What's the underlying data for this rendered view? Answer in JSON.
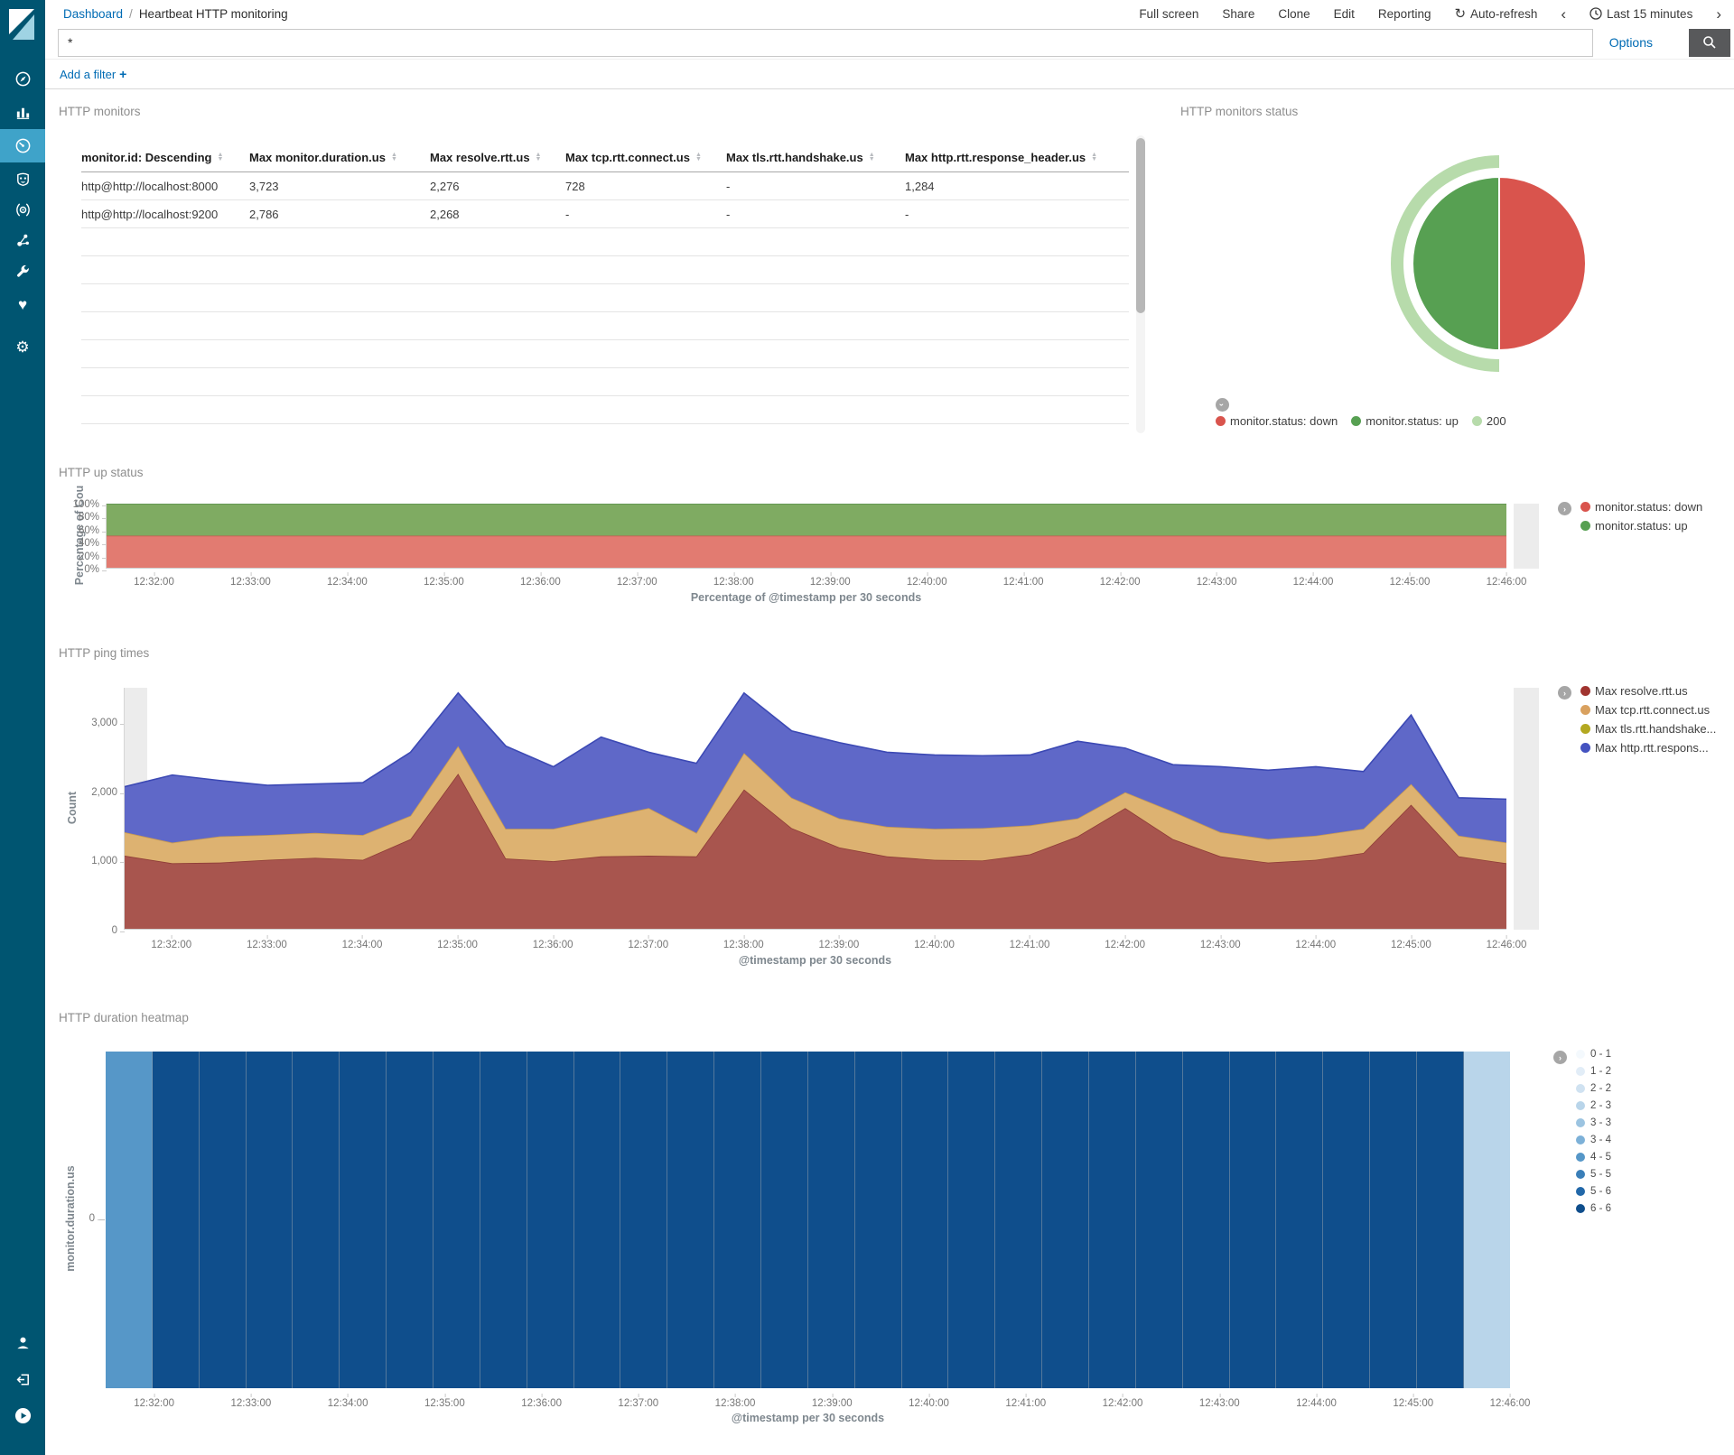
{
  "topbar": {
    "breadcrumb": {
      "root": "Dashboard",
      "separator": "/",
      "current": "Heartbeat HTTP monitoring"
    },
    "menu": [
      "Full screen",
      "Share",
      "Clone",
      "Edit",
      "Reporting"
    ],
    "auto_refresh_label": "Auto-refresh",
    "time_range_label": "Last 15 minutes"
  },
  "query": {
    "value": "*",
    "options_label": "Options"
  },
  "filter": {
    "add_label": "Add a filter",
    "plus_label": "+"
  },
  "sidebar": {
    "items": [
      "discover",
      "visualize",
      "dashboard",
      "ml",
      "apm",
      "graph",
      "devtools",
      "monitoring",
      "management"
    ],
    "active": "dashboard",
    "bottom_items": [
      "account",
      "logout",
      "collapse"
    ]
  },
  "x_ticks": [
    "12:32:00",
    "12:33:00",
    "12:34:00",
    "12:35:00",
    "12:36:00",
    "12:37:00",
    "12:38:00",
    "12:39:00",
    "12:40:00",
    "12:41:00",
    "12:42:00",
    "12:43:00",
    "12:44:00",
    "12:45:00",
    "12:46:00"
  ],
  "buckets": [
    "12:31:30",
    "12:32:00",
    "12:32:30",
    "12:33:00",
    "12:33:30",
    "12:34:00",
    "12:34:30",
    "12:35:00",
    "12:35:30",
    "12:36:00",
    "12:36:30",
    "12:37:00",
    "12:37:30",
    "12:38:00",
    "12:38:30",
    "12:39:00",
    "12:39:30",
    "12:40:00",
    "12:40:30",
    "12:41:00",
    "12:41:30",
    "12:42:00",
    "12:42:30",
    "12:43:00",
    "12:43:30",
    "12:44:00",
    "12:44:30",
    "12:45:00",
    "12:45:30",
    "12:46:00"
  ],
  "panels": {
    "monitors": {
      "title": "HTTP monitors",
      "table": {
        "columns": [
          "monitor.id: Descending",
          "Max monitor.duration.us",
          "Max resolve.rtt.us",
          "Max tcp.rtt.connect.us",
          "Max tls.rtt.handshake.us",
          "Max http.rtt.response_header.us"
        ],
        "rows": [
          [
            "http@http://localhost:8000",
            "3,723",
            "2,276",
            "728",
            "-",
            "1,284"
          ],
          [
            "http@http://localhost:9200",
            "2,786",
            "2,268",
            "-",
            "-",
            "-"
          ]
        ],
        "empty_row_count": 7
      }
    },
    "status": {
      "title": "HTTP monitors status",
      "legend": [
        {
          "label": "monitor.status: down",
          "color": "#d9544d"
        },
        {
          "label": "monitor.status: up",
          "color": "#57a052"
        },
        {
          "label": "200",
          "color": "#b7dbab"
        }
      ]
    },
    "up": {
      "title": "HTTP up status",
      "ylabel": "Percentage of Cou",
      "xlabel": "Percentage of @timestamp per 30 seconds",
      "y_ticks": [
        {
          "v": 0,
          "label": "0%"
        },
        {
          "v": 20,
          "label": "20%"
        },
        {
          "v": 40,
          "label": "40%"
        },
        {
          "v": 60,
          "label": "60%"
        },
        {
          "v": 80,
          "label": "80%"
        },
        {
          "v": 100,
          "label": "100%"
        }
      ],
      "legend": [
        {
          "label": "monitor.status: down",
          "color": "#d9544d"
        },
        {
          "label": "monitor.status: up",
          "color": "#57a052"
        }
      ]
    },
    "ping": {
      "title": "HTTP ping times",
      "ylabel": "Count",
      "xlabel": "@timestamp per 30 seconds",
      "y_ticks": [
        {
          "v": 0,
          "label": "0"
        },
        {
          "v": 1000,
          "label": "1,000"
        },
        {
          "v": 2000,
          "label": "2,000"
        },
        {
          "v": 3000,
          "label": "3,000"
        }
      ],
      "legend": [
        {
          "label": "Max resolve.rtt.us",
          "color": "#a0342f"
        },
        {
          "label": "Max tcp.rtt.connect.us",
          "color": "#d9a15f"
        },
        {
          "label": "Max tls.rtt.handshake...",
          "color": "#b3a821"
        },
        {
          "label": "Max http.rtt.respons...",
          "color": "#4453c0"
        }
      ]
    },
    "heatmap": {
      "title": "HTTP duration heatmap",
      "ylabel": "monitor.duration.us",
      "xlabel": "@timestamp per 30 seconds",
      "y_ticks": [
        {
          "label": "0"
        }
      ]
    }
  },
  "chart_data": [
    {
      "id": "monitors-status-pie",
      "type": "pie",
      "title": "HTTP monitors status",
      "slices": [
        {
          "label": "monitor.status: down",
          "value": 50,
          "color": "#d9544d"
        },
        {
          "label": "monitor.status: up",
          "value": 50,
          "color": "#57a052"
        }
      ],
      "outer_ring": [
        {
          "label": "200",
          "value": 50,
          "color": "#b7dbab"
        }
      ],
      "layout": "outer ring covers left half over the up slice"
    },
    {
      "id": "up-status",
      "type": "area",
      "stacked": true,
      "title": "HTTP up status",
      "xlabel": "Percentage of @timestamp per 30 seconds",
      "ylabel": "Percentage of Count",
      "ylim": [
        0,
        100
      ],
      "ymax": 100,
      "x_ref": "buckets",
      "series": [
        {
          "name": "monitor.status: down",
          "fill": "#e27b71",
          "stroke": "#cc564e",
          "values": [
            50,
            50,
            50,
            50,
            50,
            50,
            50,
            50,
            50,
            50,
            50,
            50,
            50,
            50,
            50,
            50,
            50,
            50,
            50,
            50,
            50,
            50,
            50,
            50,
            50,
            50,
            50,
            50,
            50,
            50
          ]
        },
        {
          "name": "monitor.status: up",
          "fill": "#7fab62",
          "stroke": "#5d9150",
          "values": [
            50,
            50,
            50,
            50,
            50,
            50,
            50,
            50,
            50,
            50,
            50,
            50,
            50,
            50,
            50,
            50,
            50,
            50,
            50,
            50,
            50,
            50,
            50,
            50,
            50,
            50,
            50,
            50,
            50,
            50
          ]
        }
      ]
    },
    {
      "id": "ping",
      "type": "area",
      "stacked": true,
      "title": "HTTP ping times",
      "xlabel": "@timestamp per 30 seconds",
      "ylabel": "Count",
      "ylim": [
        0,
        3495
      ],
      "ymax": 3495,
      "x_ref": "buckets",
      "series": [
        {
          "name": "Max resolve.rtt.us",
          "fill": "#a8554e",
          "stroke": "#8e3c37",
          "values": [
            1060,
            950,
            960,
            1000,
            1030,
            1000,
            1300,
            2250,
            1020,
            980,
            1050,
            1060,
            1050,
            2020,
            1460,
            1180,
            1050,
            1000,
            990,
            1080,
            1340,
            1750,
            1300,
            1050,
            960,
            1000,
            1100,
            1800,
            1050,
            950
          ]
        },
        {
          "name": "Max tcp.rtt.connect.us",
          "fill": "#ddb271",
          "stroke": "#c89a52",
          "values": [
            340,
            300,
            380,
            360,
            360,
            360,
            340,
            400,
            430,
            470,
            550,
            690,
            340,
            530,
            440,
            420,
            430,
            450,
            470,
            420,
            260,
            230,
            400,
            350,
            340,
            350,
            350,
            300,
            300,
            300
          ]
        },
        {
          "name": "Max tls.rtt.handshake.us",
          "fill": "#bdb23e",
          "stroke": "#a39a21",
          "values": [
            0,
            0,
            0,
            0,
            0,
            0,
            0,
            0,
            0,
            0,
            0,
            0,
            0,
            0,
            0,
            0,
            0,
            0,
            0,
            0,
            0,
            0,
            0,
            0,
            0,
            0,
            0,
            0,
            0,
            0
          ]
        },
        {
          "name": "Max http.rtt.response_header.us",
          "fill": "#5f68c8",
          "stroke": "#3c49b4",
          "values": [
            660,
            980,
            810,
            720,
            710,
            760,
            920,
            770,
            1200,
            900,
            1180,
            810,
            1010,
            870,
            970,
            1100,
            1080,
            1070,
            1050,
            1020,
            1120,
            640,
            680,
            950,
            1000,
            1000,
            830,
            1000,
            550,
            630
          ]
        }
      ]
    },
    {
      "id": "duration-heatmap",
      "type": "heatmap",
      "title": "HTTP duration heatmap",
      "xlabel": "@timestamp per 30 seconds",
      "ylabel": "monitor.duration.us",
      "x_ref": "buckets",
      "row_label": "0",
      "counts": [
        4,
        6,
        6,
        6,
        6,
        6,
        6,
        6,
        6,
        6,
        6,
        6,
        6,
        6,
        6,
        6,
        6,
        6,
        6,
        6,
        6,
        6,
        6,
        6,
        6,
        6,
        6,
        6,
        6,
        2
      ],
      "palette": [
        {
          "label": "0 - 1",
          "min": 0,
          "color": "#f4f9fd"
        },
        {
          "label": "1 - 2",
          "min": 1,
          "color": "#e2edf7"
        },
        {
          "label": "2 - 2",
          "min": 2,
          "color": "#d0e2f1"
        },
        {
          "label": "2 - 3",
          "min": 2,
          "color": "#b9d5ea"
        },
        {
          "label": "3 - 3",
          "min": 3,
          "color": "#9cc4e1"
        },
        {
          "label": "3 - 4",
          "min": 3,
          "color": "#7db1d8"
        },
        {
          "label": "4 - 5",
          "min": 4,
          "color": "#5697c8"
        },
        {
          "label": "5 - 5",
          "min": 5,
          "color": "#3a7fb8"
        },
        {
          "label": "5 - 6",
          "min": 5,
          "color": "#2268a9"
        },
        {
          "label": "6 - 6",
          "min": 6,
          "color": "#0f4e8c"
        }
      ]
    }
  ]
}
